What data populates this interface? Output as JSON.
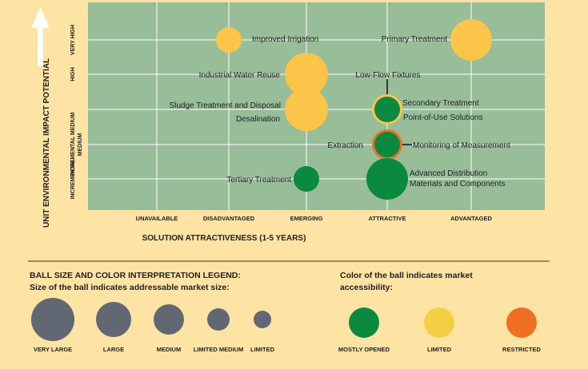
{
  "colors": {
    "page_background": "#fde3a4",
    "plot_background": "#97bd99",
    "grid": "#ffffff",
    "mostly_opened": "#0b8a3f",
    "limited": "#fbc54a",
    "restricted": "#ef6f23",
    "size_ball": "#626873"
  },
  "chart_data": {
    "type": "scatter",
    "xlabel": "SOLUTION ATTRACTIVENESS (1-5 YEARS)",
    "ylabel": "UNIT ENVIRONMENTAL IMPACT POTENTIAL",
    "x_categories": [
      "UNAVAILABLE",
      "DISADVANTAGED",
      "EMERGING",
      "ATTRACTIVE",
      "ADVANTAGED"
    ],
    "y_categories": [
      "INCREMENTAL",
      "INCREMENTAL MEDIUM",
      "MEDIUM",
      "HIGH",
      "VERY HIGH"
    ],
    "points": [
      {
        "label": "Improved Irrigation",
        "x": "DISADVANTAGED",
        "y": "VERY HIGH",
        "size": "LIMITED MEDIUM",
        "color": "LIMITED"
      },
      {
        "label": "Primary Treatment",
        "x": "ADVANTAGED",
        "y": "VERY HIGH",
        "size": "LARGE",
        "color": "LIMITED"
      },
      {
        "label": "Industrial Water Reuse",
        "x": "EMERGING",
        "y": "HIGH",
        "size": "VERY LARGE",
        "color": "LIMITED"
      },
      {
        "label": "Low-Flow Fixtures",
        "x": "ATTRACTIVE",
        "y": "HIGH",
        "size": "",
        "color": ""
      },
      {
        "label": "Sludge Treatment and Disposal",
        "x": "EMERGING",
        "y": "MEDIUM",
        "size": "VERY LARGE",
        "color": "LIMITED"
      },
      {
        "label": "Desalination",
        "x": "EMERGING",
        "y": "MEDIUM",
        "size": "VERY LARGE",
        "color": "LIMITED"
      },
      {
        "label": "Secondary Treatment",
        "x": "ATTRACTIVE",
        "y": "MEDIUM",
        "size": "MEDIUM",
        "color": "MOSTLY OPENED",
        "ring": "LIMITED"
      },
      {
        "label": "Point-of-Use Solutions",
        "x": "ATTRACTIVE",
        "y": "MEDIUM",
        "size": "MEDIUM",
        "color": "MOSTLY OPENED",
        "ring": "LIMITED"
      },
      {
        "label": "Extraction",
        "x": "ATTRACTIVE",
        "y": "INCREMENTAL MEDIUM",
        "size": "MEDIUM",
        "color": "MOSTLY OPENED",
        "ring": "RESTRICTED"
      },
      {
        "label": "Monitoring of Measurement",
        "x": "ATTRACTIVE",
        "y": "INCREMENTAL MEDIUM",
        "size": "MEDIUM",
        "color": "MOSTLY OPENED",
        "ring": "RESTRICTED"
      },
      {
        "label": "Tertiary Treatment",
        "x": "EMERGING",
        "y": "INCREMENTAL",
        "size": "LIMITED MEDIUM",
        "color": "MOSTLY OPENED"
      },
      {
        "label": "Advanced Distribution Materials and Components",
        "x": "ATTRACTIVE",
        "y": "INCREMENTAL",
        "size": "LARGE",
        "color": "MOSTLY OPENED"
      }
    ]
  },
  "legend": {
    "title": "BALL SIZE AND COLOR INTERPRETATION LEGEND:",
    "size_subtitle": "Size of the ball indicates addressable market size:",
    "color_subtitle_line1": "Color of the ball indicates market",
    "color_subtitle_line2": "accessibility:",
    "sizes": [
      "VERY LARGE",
      "LARGE",
      "MEDIUM",
      "LIMITED MEDIUM",
      "LIMITED"
    ],
    "colors": [
      "MOSTLY OPENED",
      "LIMITED",
      "RESTRICTED"
    ]
  }
}
